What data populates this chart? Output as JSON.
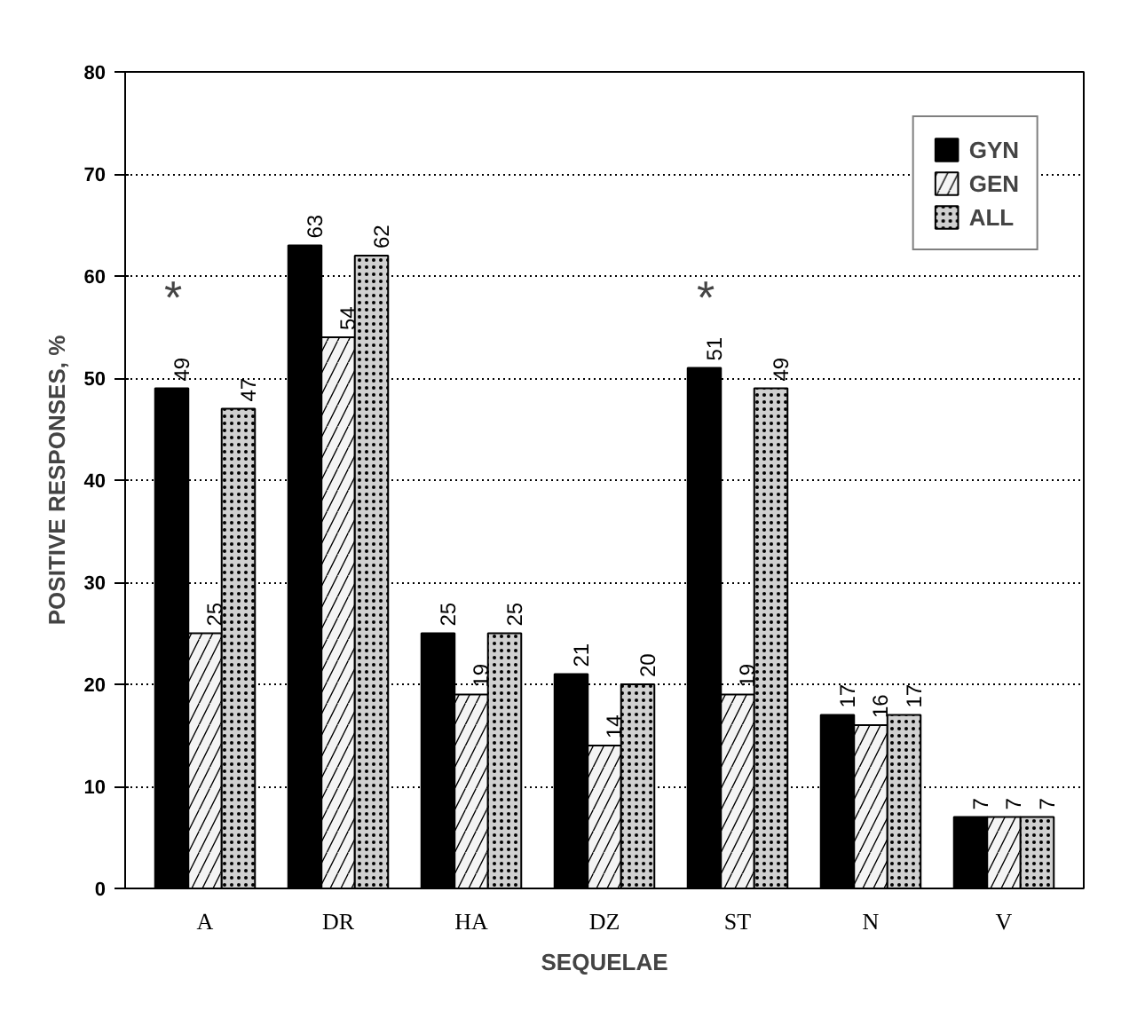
{
  "chart_data": {
    "type": "bar",
    "xlabel": "SEQUELAE",
    "ylabel": "POSITIVE RESPONSES, %",
    "categories": [
      "A",
      "DR",
      "HA",
      "DZ",
      "ST",
      "N",
      "V"
    ],
    "series": [
      {
        "name": "GYN",
        "color": "#000000",
        "values": [
          49,
          63,
          25,
          21,
          51,
          17,
          7
        ]
      },
      {
        "name": "GEN",
        "color": "#f4f4f4",
        "values": [
          25,
          54,
          19,
          14,
          19,
          16,
          7
        ]
      },
      {
        "name": "ALL",
        "color": "#d0d0d0",
        "values": [
          47,
          62,
          25,
          20,
          49,
          17,
          7
        ]
      }
    ],
    "ylim": [
      0,
      80
    ],
    "yticks": [
      0,
      10,
      20,
      30,
      40,
      50,
      60,
      70,
      80
    ],
    "data_labels": true,
    "grid": "y",
    "legend": "top right",
    "annotations": [
      "*",
      "*"
    ]
  }
}
